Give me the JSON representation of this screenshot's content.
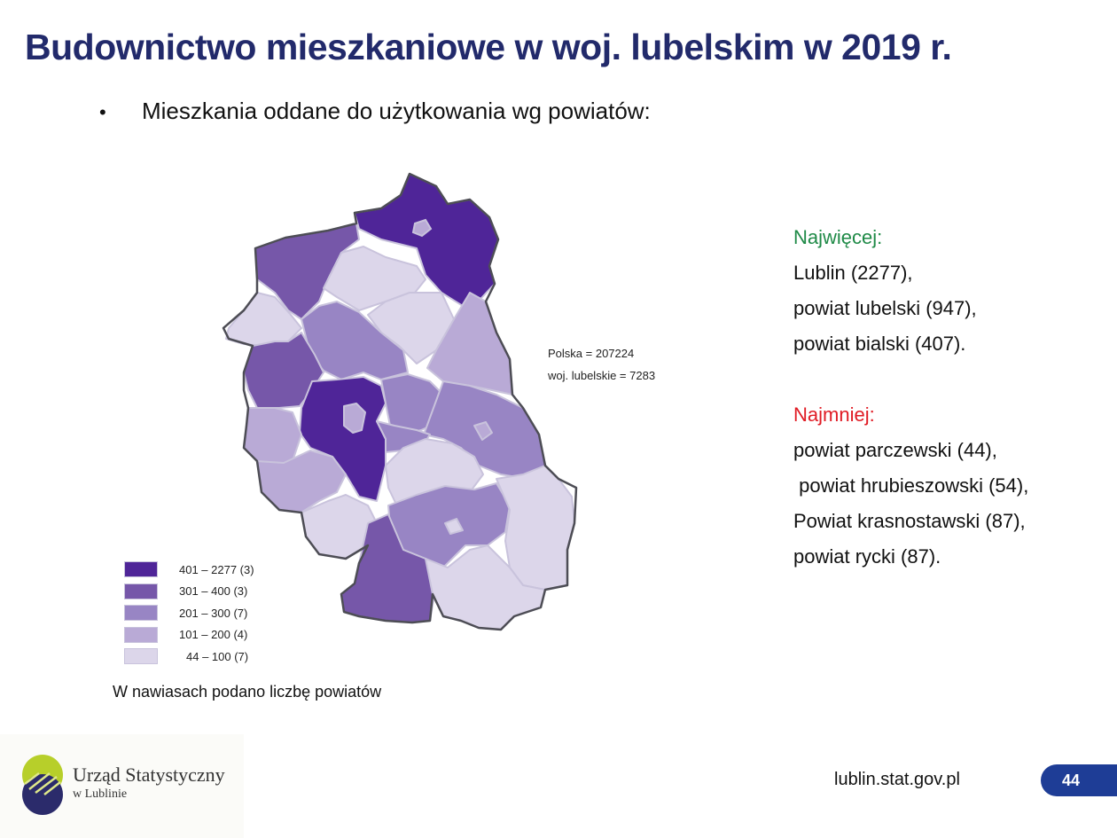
{
  "slide": {
    "title": "Budownictwo mieszkaniowe w woj. lubelskim w 2019 r.",
    "bullet": "Mieszkania oddane do użytkowania wg powiatów:"
  },
  "map": {
    "polska_label": "Polska = 207224",
    "lubelskie_label": "woj. lubelskie = 7283",
    "legend": [
      {
        "label": "401 – 2277 (3)",
        "color": "#4f2598"
      },
      {
        "label": "301 –  400 (3)",
        "color": "#7657a9"
      },
      {
        "label": "201 –  300 (7)",
        "color": "#9885c4"
      },
      {
        "label": "101 –  200 (4)",
        "color": "#b9aad6"
      },
      {
        "label": "44 –   100 (7)",
        "color": "#dcd6ea"
      }
    ],
    "note": "W nawiasach podano liczbę powiatów"
  },
  "stats": {
    "most_heading": "Najwięcej:",
    "most": [
      "Lublin (2277),",
      "powiat lubelski (947),",
      "powiat bialski (407)."
    ],
    "least_heading": "Najmniej:",
    "least": [
      "powiat parczewski (44),",
      " powiat hrubieszowski (54),",
      "Powiat krasnostawski (87),",
      "powiat rycki (87)."
    ]
  },
  "footer": {
    "logo_name": "Urząd Statystyczny",
    "logo_sub": "w Lublinie",
    "website": "lublin.stat.gov.pl",
    "page_number": "44"
  },
  "colors": {
    "title": "#222a6b",
    "green": "#1f8a47",
    "red": "#e01b24",
    "page_badge": "#1e3d96",
    "logo_green": "#b7cf2a",
    "logo_navy": "#2b2b6b"
  }
}
